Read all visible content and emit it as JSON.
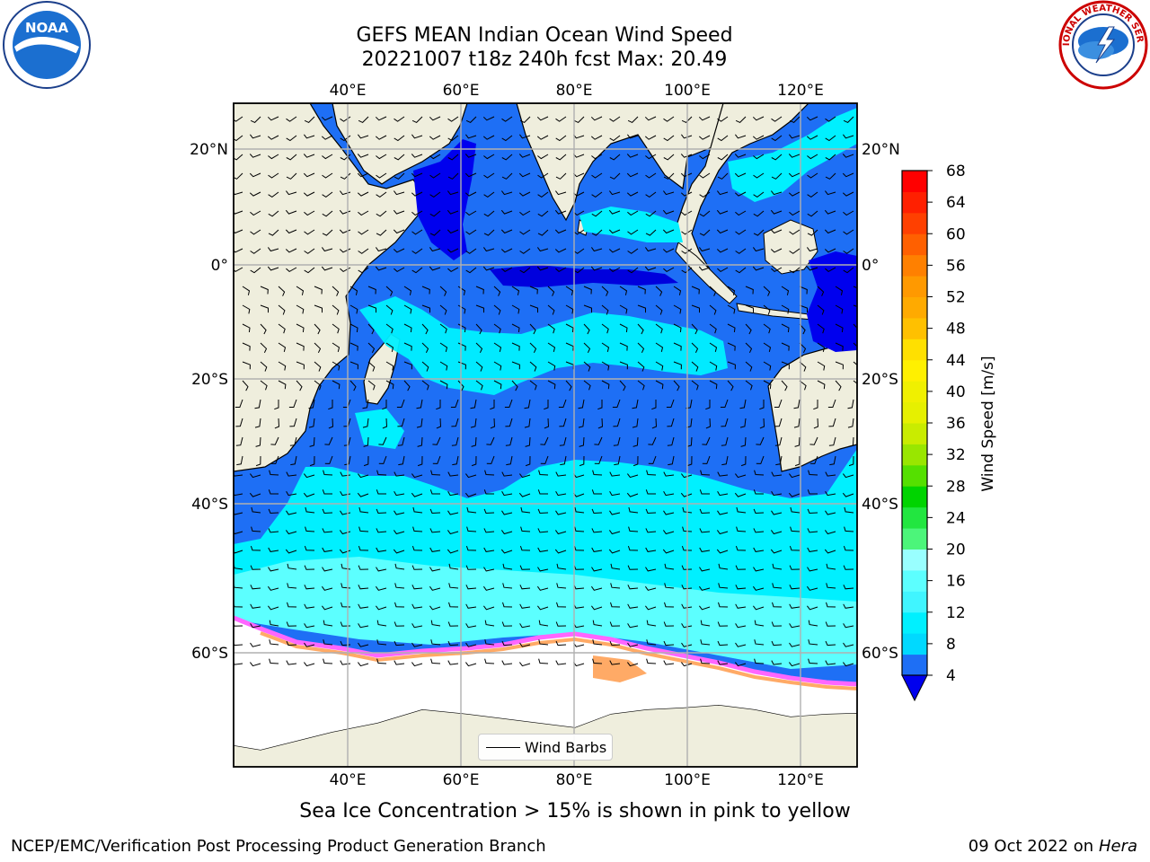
{
  "title": {
    "line1": "GEFS MEAN Indian Ocean Wind Speed",
    "line2": "20221007 t18z 240h fcst   Max: 20.49"
  },
  "map": {
    "lon_ticks": [
      "40°E",
      "60°E",
      "80°E",
      "100°E",
      "120°E"
    ],
    "lat_ticks": [
      "20°N",
      "0°",
      "20°S",
      "40°S",
      "60°S"
    ],
    "legend_label": "Wind Barbs",
    "colors": {
      "land": "#efeedd",
      "ice_shelf": "#ffffff",
      "grid": "#b0b0b0",
      "sea_ice": [
        "#ff66ff",
        "#ff99cc",
        "#ffaa66",
        "#ffdd55"
      ]
    }
  },
  "colorbar": {
    "label": "Wind Speed [m/s]",
    "ticks": [
      "4",
      "8",
      "12",
      "16",
      "20",
      "24",
      "28",
      "32",
      "36",
      "40",
      "44",
      "48",
      "52",
      "56",
      "60",
      "64",
      "68"
    ],
    "under_color": "#0000ee",
    "bins": [
      "#1e6ff5",
      "#00d9ff",
      "#00f0ff",
      "#40f5ff",
      "#5cffff",
      "#99ffff",
      "#4cf57a",
      "#22e640",
      "#00d400",
      "#55e000",
      "#99e600",
      "#c9ec00",
      "#e6f000",
      "#f0f000",
      "#fff000",
      "#ffe000",
      "#ffc000",
      "#ffaa00",
      "#ff9900",
      "#ff8000",
      "#ff6000",
      "#ff4000",
      "#ff2000",
      "#ff0000"
    ]
  },
  "subnote": "Sea Ice Concentration > 15% is shown in pink to yellow",
  "footer": {
    "left": "NCEP/EMC/Verification Post Processing Product Generation Branch",
    "date": "09 Oct 2022 on",
    "host": "Hera"
  },
  "logos": {
    "left": "noaa-logo",
    "right": "national-weather-service-logo",
    "noaa_text": "NOAA",
    "nws_text": "NATIONAL WEATHER SERVICE"
  }
}
